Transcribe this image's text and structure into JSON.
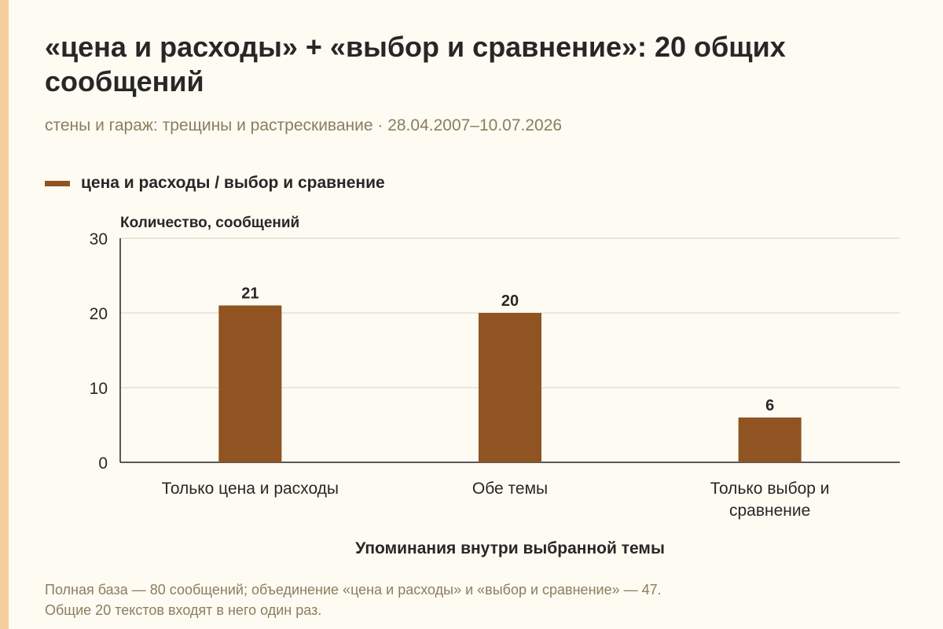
{
  "title": "«цена и расходы» + «выбор и сравнение»: 20 общих сообщений",
  "subtitle": "стены и гараж: трещины и растрескивание · 28.04.2007–10.07.2026",
  "legend": {
    "label": "цена и расходы / выбор и сравнение",
    "color": "#8f5421"
  },
  "chart_data": {
    "type": "bar",
    "categories": [
      "Только цена и расходы",
      "Обе темы",
      "Только выбор и сравнение"
    ],
    "category_lines": [
      [
        "Только цена и расходы"
      ],
      [
        "Обе темы"
      ],
      [
        "Только выбор и",
        "сравнение"
      ]
    ],
    "series": [
      {
        "name": "цена и расходы / выбор и сравнение",
        "values": [
          21,
          20,
          6
        ]
      }
    ],
    "ylabel": "Количество, сообщений",
    "xlabel": "Упоминания внутри выбранной темы",
    "ylim": [
      0,
      30
    ],
    "yticks": [
      0,
      10,
      20,
      30
    ],
    "ytick_labels": [
      "0",
      "10",
      "20",
      "30"
    ],
    "data_labels": [
      "21",
      "20",
      "6"
    ],
    "grid": true,
    "legend_position": "top-left",
    "bar_color": "#8f5421"
  },
  "footnote": {
    "line1": "Полная база — 80 сообщений; объединение «цена и расходы» и «выбор и сравнение» — 47.",
    "line2": "Общие 20 текстов входят в него один раз."
  },
  "colors": {
    "background": "#fdfbf2",
    "accent_stripe": "#f5cf9c",
    "bar": "#8f5421",
    "muted_text": "#8b7d5e"
  }
}
